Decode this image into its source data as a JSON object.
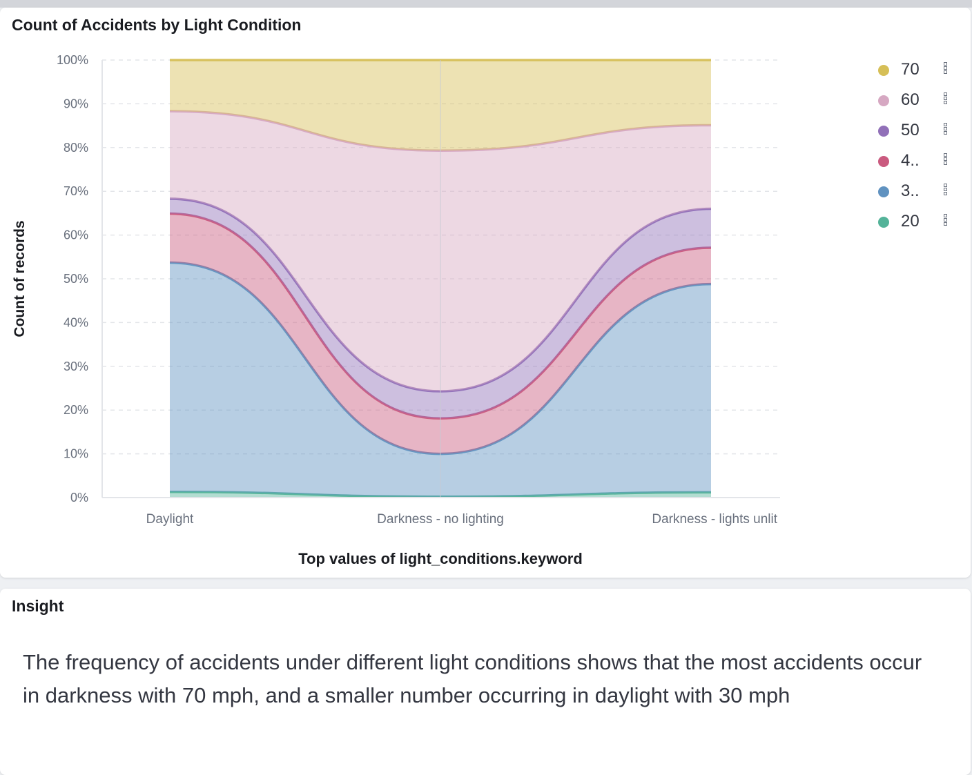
{
  "chart_panel": {
    "title": "Count of Accidents by Light Condition"
  },
  "insight_panel": {
    "title": "Insight",
    "text": "The frequency of accidents under different light conditions shows that the most accidents occur in darkness with 70 mph, and a smaller number occurring in daylight with 30 mph"
  },
  "colors": {
    "70": "#d6bf57",
    "60": "#d6a8c2",
    "50": "#9170b8",
    "4..": "#ca5a7f",
    "3..": "#6092c0",
    "20": "#54b399"
  },
  "chart_data": {
    "type": "area",
    "stacking": "percent",
    "curve": "smooth",
    "xlabel": "Top values of light_conditions.keyword",
    "ylabel": "Count of records",
    "ylim": [
      0,
      100
    ],
    "yticks": [
      "0%",
      "10%",
      "20%",
      "30%",
      "40%",
      "50%",
      "60%",
      "70%",
      "80%",
      "90%",
      "100%"
    ],
    "grid": true,
    "legend_position": "right",
    "categories": [
      "Daylight",
      "Darkness - no lighting",
      "Darkness - lights unlit"
    ],
    "series": [
      {
        "name": "20",
        "values": [
          1.3,
          0.2,
          1.2
        ]
      },
      {
        "name": "3..",
        "values": [
          52.4,
          9.8,
          47.6
        ]
      },
      {
        "name": "4..",
        "values": [
          11.2,
          8.1,
          8.3
        ]
      },
      {
        "name": "50",
        "values": [
          3.4,
          6.2,
          8.9
        ]
      },
      {
        "name": "60",
        "values": [
          20.0,
          55.0,
          19.1
        ]
      },
      {
        "name": "70",
        "values": [
          11.7,
          20.7,
          14.9
        ]
      }
    ],
    "legend_order": [
      "70",
      "60",
      "50",
      "4..",
      "3..",
      "20"
    ]
  }
}
